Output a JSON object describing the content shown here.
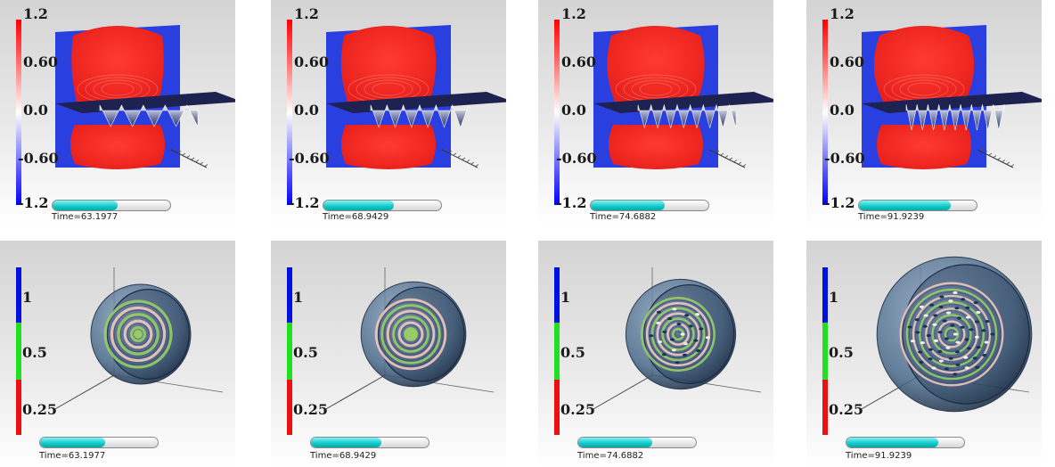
{
  "top_row": {
    "colorbar_ticks": [
      "1.2",
      "0.60",
      "0.0",
      "-0.60",
      "-1.2"
    ],
    "colormap": "red-white-blue",
    "panels": [
      {
        "time_label": "Time=63.1977",
        "progress": 0.55
      },
      {
        "time_label": "Time=68.9429",
        "progress": 0.6
      },
      {
        "time_label": "Time=74.6882",
        "progress": 0.63
      },
      {
        "time_label": "Time=91.9239",
        "progress": 0.78
      }
    ]
  },
  "bottom_row": {
    "colorbar_ticks": [
      "1",
      "0.5",
      "0.25"
    ],
    "colorbar_colors": [
      "#0010e0",
      "#20e020",
      "#ee1010"
    ],
    "panels": [
      {
        "time_label": "Time=63.1977",
        "progress": 0.55
      },
      {
        "time_label": "Time=68.9429",
        "progress": 0.6
      },
      {
        "time_label": "Time=74.6882",
        "progress": 0.63
      },
      {
        "time_label": "Time=91.9239",
        "progress": 0.78
      }
    ]
  },
  "colors": {
    "red_field": "#e8201c",
    "blue_field": "#2a3fe0",
    "progress_fill": "#10c8c8",
    "sphere_shell": "#4a6a8a",
    "ring_green": "#9acc66",
    "ring_pink": "#f4c6c0"
  }
}
